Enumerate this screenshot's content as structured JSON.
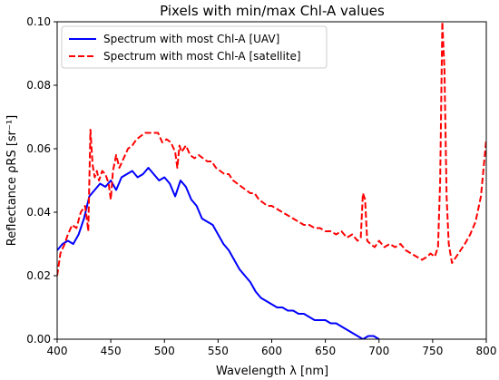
{
  "chart_data": {
    "type": "line",
    "title": "Pixels with min/max Chl-A values",
    "xlabel": "Wavelength λ [nm]",
    "ylabel": "Reflectance ρRS [sr⁻¹]",
    "xlim": [
      400,
      800
    ],
    "ylim": [
      0,
      0.1
    ],
    "x_ticks": [
      400,
      450,
      500,
      550,
      600,
      650,
      700,
      750,
      800
    ],
    "y_ticks": [
      0.0,
      0.02,
      0.04,
      0.06,
      0.08,
      0.1
    ],
    "x_tick_labels": [
      "400",
      "450",
      "500",
      "550",
      "600",
      "650",
      "700",
      "750",
      "800"
    ],
    "y_tick_labels": [
      "0.00",
      "0.02",
      "0.04",
      "0.06",
      "0.08",
      "0.10"
    ],
    "grid": false,
    "legend_position": "upper-left",
    "series": [
      {
        "name": "Spectrum with most Chl-A [UAV]",
        "color": "#0000ff",
        "style": "solid",
        "points": [
          [
            400,
            0.028
          ],
          [
            405,
            0.03
          ],
          [
            410,
            0.031
          ],
          [
            415,
            0.03
          ],
          [
            420,
            0.033
          ],
          [
            425,
            0.038
          ],
          [
            430,
            0.045
          ],
          [
            435,
            0.047
          ],
          [
            440,
            0.049
          ],
          [
            445,
            0.048
          ],
          [
            450,
            0.05
          ],
          [
            455,
            0.047
          ],
          [
            460,
            0.051
          ],
          [
            465,
            0.052
          ],
          [
            470,
            0.053
          ],
          [
            475,
            0.051
          ],
          [
            480,
            0.052
          ],
          [
            485,
            0.054
          ],
          [
            490,
            0.052
          ],
          [
            495,
            0.05
          ],
          [
            500,
            0.051
          ],
          [
            505,
            0.049
          ],
          [
            510,
            0.045
          ],
          [
            515,
            0.05
          ],
          [
            520,
            0.048
          ],
          [
            525,
            0.044
          ],
          [
            530,
            0.042
          ],
          [
            535,
            0.038
          ],
          [
            540,
            0.037
          ],
          [
            545,
            0.036
          ],
          [
            550,
            0.033
          ],
          [
            555,
            0.03
          ],
          [
            560,
            0.028
          ],
          [
            565,
            0.025
          ],
          [
            570,
            0.022
          ],
          [
            575,
            0.02
          ],
          [
            580,
            0.018
          ],
          [
            585,
            0.015
          ],
          [
            590,
            0.013
          ],
          [
            595,
            0.012
          ],
          [
            600,
            0.011
          ],
          [
            605,
            0.01
          ],
          [
            610,
            0.01
          ],
          [
            615,
            0.009
          ],
          [
            620,
            0.009
          ],
          [
            625,
            0.008
          ],
          [
            630,
            0.008
          ],
          [
            635,
            0.007
          ],
          [
            640,
            0.006
          ],
          [
            645,
            0.006
          ],
          [
            650,
            0.006
          ],
          [
            655,
            0.005
          ],
          [
            660,
            0.005
          ],
          [
            665,
            0.004
          ],
          [
            670,
            0.003
          ],
          [
            675,
            0.002
          ],
          [
            680,
            0.001
          ],
          [
            685,
            0.0
          ],
          [
            690,
            0.001
          ],
          [
            695,
            0.001
          ],
          [
            700,
            0.0
          ]
        ]
      },
      {
        "name": "Spectrum with most Chl-A [satellite]",
        "color": "#ff0000",
        "style": "dashed",
        "points": [
          [
            400,
            0.02
          ],
          [
            403,
            0.027
          ],
          [
            407,
            0.03
          ],
          [
            410,
            0.033
          ],
          [
            414,
            0.036
          ],
          [
            418,
            0.035
          ],
          [
            422,
            0.04
          ],
          [
            426,
            0.042
          ],
          [
            428,
            0.037
          ],
          [
            429,
            0.034
          ],
          [
            431,
            0.066
          ],
          [
            433,
            0.055
          ],
          [
            435,
            0.051
          ],
          [
            437,
            0.053
          ],
          [
            439,
            0.05
          ],
          [
            442,
            0.053
          ],
          [
            445,
            0.052
          ],
          [
            448,
            0.049
          ],
          [
            450,
            0.044
          ],
          [
            452,
            0.053
          ],
          [
            455,
            0.058
          ],
          [
            458,
            0.054
          ],
          [
            462,
            0.057
          ],
          [
            466,
            0.06
          ],
          [
            470,
            0.061
          ],
          [
            474,
            0.063
          ],
          [
            478,
            0.064
          ],
          [
            482,
            0.065
          ],
          [
            486,
            0.065
          ],
          [
            490,
            0.065
          ],
          [
            494,
            0.065
          ],
          [
            498,
            0.062
          ],
          [
            502,
            0.063
          ],
          [
            506,
            0.062
          ],
          [
            510,
            0.059
          ],
          [
            512,
            0.054
          ],
          [
            514,
            0.061
          ],
          [
            516,
            0.059
          ],
          [
            520,
            0.061
          ],
          [
            524,
            0.058
          ],
          [
            528,
            0.057
          ],
          [
            532,
            0.058
          ],
          [
            536,
            0.057
          ],
          [
            540,
            0.056
          ],
          [
            544,
            0.056
          ],
          [
            548,
            0.054
          ],
          [
            552,
            0.053
          ],
          [
            556,
            0.052
          ],
          [
            560,
            0.052
          ],
          [
            564,
            0.05
          ],
          [
            568,
            0.049
          ],
          [
            572,
            0.048
          ],
          [
            576,
            0.047
          ],
          [
            580,
            0.046
          ],
          [
            584,
            0.046
          ],
          [
            588,
            0.044
          ],
          [
            592,
            0.043
          ],
          [
            596,
            0.042
          ],
          [
            600,
            0.042
          ],
          [
            605,
            0.041
          ],
          [
            610,
            0.04
          ],
          [
            615,
            0.039
          ],
          [
            620,
            0.038
          ],
          [
            625,
            0.037
          ],
          [
            630,
            0.036
          ],
          [
            635,
            0.036
          ],
          [
            640,
            0.035
          ],
          [
            645,
            0.035
          ],
          [
            650,
            0.034
          ],
          [
            655,
            0.034
          ],
          [
            660,
            0.033
          ],
          [
            665,
            0.034
          ],
          [
            670,
            0.032
          ],
          [
            675,
            0.033
          ],
          [
            680,
            0.031
          ],
          [
            683,
            0.032
          ],
          [
            685,
            0.046
          ],
          [
            687,
            0.044
          ],
          [
            689,
            0.031
          ],
          [
            692,
            0.03
          ],
          [
            696,
            0.029
          ],
          [
            700,
            0.031
          ],
          [
            705,
            0.029
          ],
          [
            710,
            0.03
          ],
          [
            715,
            0.029
          ],
          [
            720,
            0.03
          ],
          [
            725,
            0.028
          ],
          [
            730,
            0.027
          ],
          [
            735,
            0.026
          ],
          [
            740,
            0.025
          ],
          [
            745,
            0.026
          ],
          [
            748,
            0.027
          ],
          [
            752,
            0.026
          ],
          [
            755,
            0.029
          ],
          [
            757,
            0.05
          ],
          [
            759,
            0.1
          ],
          [
            761,
            0.085
          ],
          [
            763,
            0.045
          ],
          [
            765,
            0.03
          ],
          [
            768,
            0.024
          ],
          [
            772,
            0.026
          ],
          [
            776,
            0.028
          ],
          [
            780,
            0.03
          ],
          [
            785,
            0.033
          ],
          [
            790,
            0.037
          ],
          [
            795,
            0.045
          ],
          [
            800,
            0.063
          ]
        ]
      }
    ]
  }
}
